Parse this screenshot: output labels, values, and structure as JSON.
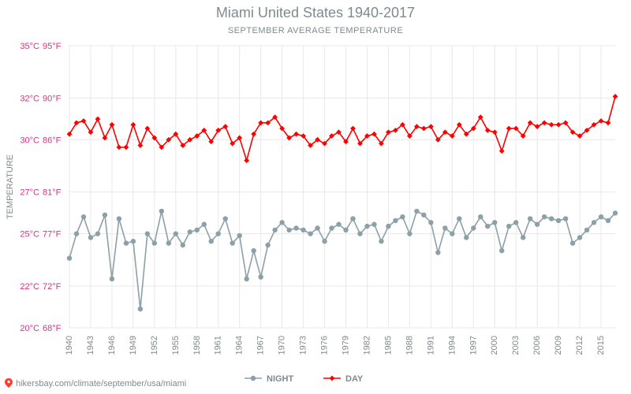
{
  "title": "Miami United States 1940-2017",
  "subtitle": "SEPTEMBER AVERAGE TEMPERATURE",
  "yaxis_label": "TEMPERATURE",
  "source": "hikersbay.com/climate/september/usa/miami",
  "chart": {
    "type": "line",
    "background_color": "#ffffff",
    "grid_color": "#e8e8e8",
    "axis_text_color": "#d63384",
    "label_text_color": "#7f8a8f",
    "title_fontsize": 18,
    "subtitle_fontsize": 11,
    "tick_fontsize": 11,
    "yticks": [
      {
        "c": "20°C",
        "f": "68°F",
        "val": 20
      },
      {
        "c": "22°C",
        "f": "72°F",
        "val": 22.22
      },
      {
        "c": "25°C",
        "f": "77°F",
        "val": 25
      },
      {
        "c": "27°C",
        "f": "81°F",
        "val": 27.22
      },
      {
        "c": "30°C",
        "f": "86°F",
        "val": 30
      },
      {
        "c": "32°C",
        "f": "90°F",
        "val": 32.22
      },
      {
        "c": "35°C",
        "f": "95°F",
        "val": 35
      }
    ],
    "xticks": [
      1940,
      1943,
      1946,
      1949,
      1952,
      1955,
      1958,
      1961,
      1964,
      1967,
      1970,
      1973,
      1976,
      1979,
      1982,
      1985,
      1988,
      1991,
      1994,
      1997,
      2000,
      2003,
      2006,
      2009,
      2012,
      2015
    ],
    "ylim": [
      20,
      35
    ],
    "xlim": [
      1940,
      2017
    ],
    "years": [
      1940,
      1941,
      1942,
      1943,
      1944,
      1945,
      1946,
      1947,
      1948,
      1949,
      1950,
      1951,
      1952,
      1953,
      1954,
      1955,
      1956,
      1957,
      1958,
      1959,
      1960,
      1961,
      1962,
      1963,
      1964,
      1965,
      1966,
      1967,
      1968,
      1969,
      1970,
      1971,
      1972,
      1973,
      1974,
      1975,
      1976,
      1977,
      1978,
      1979,
      1980,
      1981,
      1982,
      1983,
      1984,
      1985,
      1986,
      1987,
      1988,
      1989,
      1990,
      1991,
      1992,
      1993,
      1994,
      1995,
      1996,
      1997,
      1998,
      1999,
      2000,
      2001,
      2002,
      2003,
      2004,
      2005,
      2006,
      2007,
      2008,
      2009,
      2010,
      2011,
      2012,
      2013,
      2014,
      2015,
      2016,
      2017
    ],
    "series": {
      "day": {
        "label": "DAY",
        "color": "#ff0000",
        "line_width": 1.6,
        "marker": "diamond",
        "marker_size": 3.4,
        "values": [
          30.3,
          30.9,
          31.0,
          30.4,
          31.1,
          30.1,
          30.8,
          29.6,
          29.6,
          30.8,
          29.7,
          30.6,
          30.1,
          29.6,
          30.0,
          30.3,
          29.7,
          30.0,
          30.2,
          30.5,
          29.9,
          30.5,
          30.7,
          29.8,
          30.1,
          28.9,
          30.3,
          30.9,
          30.9,
          31.2,
          30.6,
          30.1,
          30.3,
          30.2,
          29.7,
          30.0,
          29.8,
          30.2,
          30.4,
          29.9,
          30.6,
          29.8,
          30.2,
          30.3,
          29.8,
          30.4,
          30.5,
          30.8,
          30.2,
          30.7,
          30.6,
          30.7,
          30.0,
          30.4,
          30.2,
          30.8,
          30.3,
          30.6,
          31.2,
          30.5,
          30.4,
          29.4,
          30.6,
          30.6,
          30.2,
          30.9,
          30.7,
          30.9,
          30.8,
          30.8,
          30.9,
          30.4,
          30.2,
          30.5,
          30.8,
          31.0,
          30.9,
          32.3
        ]
      },
      "night": {
        "label": "NIGHT",
        "color": "#8ca0a8",
        "line_width": 1.6,
        "marker": "circle",
        "marker_size": 3.2,
        "values": [
          23.7,
          25.0,
          25.9,
          24.8,
          25.0,
          26.0,
          22.6,
          25.8,
          24.5,
          24.6,
          21.0,
          25.0,
          24.5,
          26.2,
          24.5,
          25.0,
          24.4,
          25.1,
          25.2,
          25.5,
          24.6,
          25.0,
          25.8,
          24.5,
          24.9,
          22.6,
          24.1,
          22.7,
          24.4,
          25.2,
          25.6,
          25.2,
          25.3,
          25.2,
          25.0,
          25.3,
          24.6,
          25.3,
          25.5,
          25.2,
          25.8,
          25.0,
          25.4,
          25.5,
          24.6,
          25.4,
          25.7,
          25.9,
          25.0,
          26.2,
          26.0,
          25.6,
          24.0,
          25.3,
          25.0,
          25.8,
          24.8,
          25.3,
          25.9,
          25.4,
          25.6,
          24.1,
          25.4,
          25.6,
          24.8,
          25.8,
          25.5,
          25.9,
          25.8,
          25.7,
          25.8,
          24.5,
          24.8,
          25.2,
          25.6,
          25.9,
          25.7,
          26.1
        ]
      }
    },
    "legend": {
      "night_label": "NIGHT",
      "day_label": "DAY"
    }
  }
}
